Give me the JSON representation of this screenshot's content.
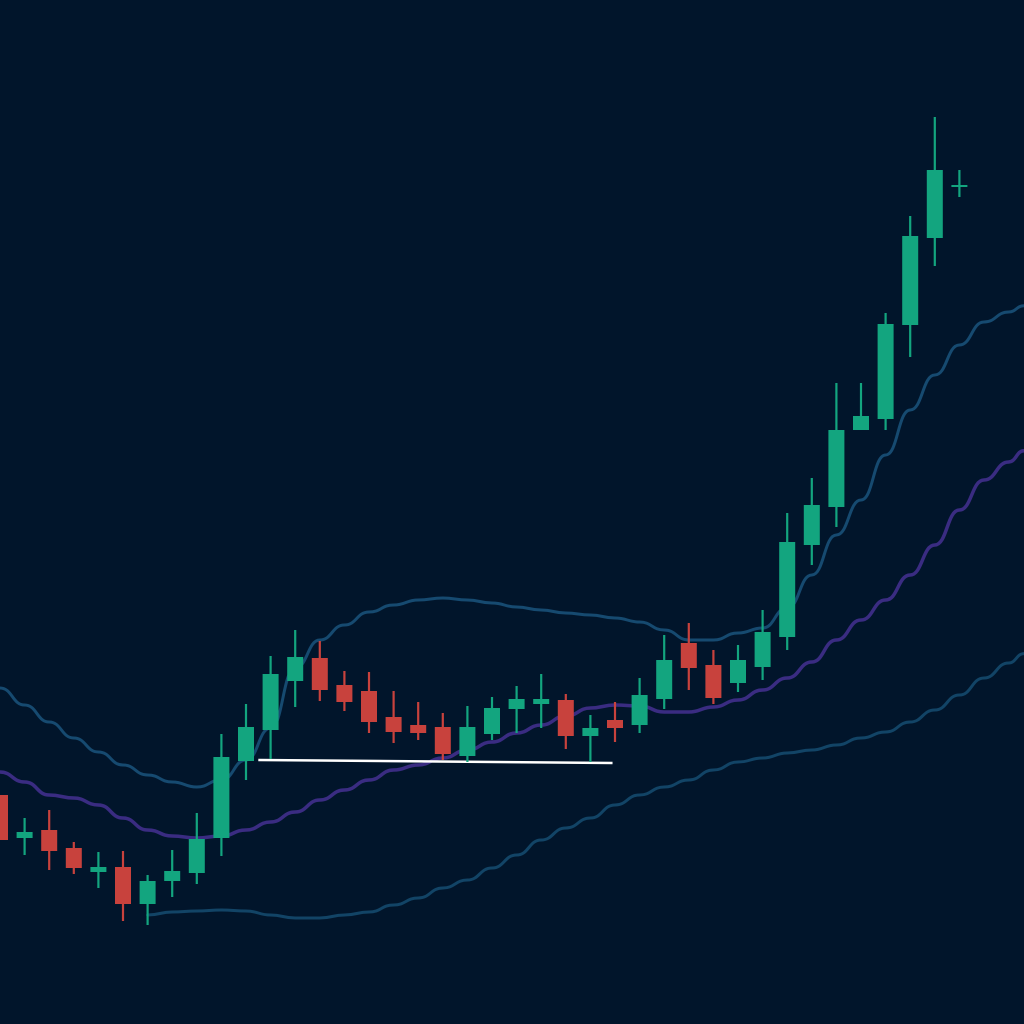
{
  "colors": {
    "background": "#01152b",
    "up": "#13a57f",
    "down": "#c8423d",
    "upper_band": "#164a70",
    "middle_band": "#3a2c82",
    "lower_band": "#124466",
    "support_line": "#ffffff"
  },
  "chart_data": {
    "type": "candlestick",
    "title": "",
    "xlabel": "",
    "ylabel": "",
    "axes_visible": false,
    "grid": false,
    "ylim": [
      0,
      100
    ],
    "candles": [
      {
        "i": 1,
        "o": 20.5,
        "h": 20.5,
        "l": 16.0,
        "c": 16.0
      },
      {
        "i": 2,
        "o": 16.2,
        "h": 18.2,
        "l": 14.5,
        "c": 16.8
      },
      {
        "i": 3,
        "o": 17.0,
        "h": 19.0,
        "l": 13.0,
        "c": 14.9
      },
      {
        "i": 4,
        "o": 15.2,
        "h": 15.8,
        "l": 12.6,
        "c": 13.2
      },
      {
        "i": 5,
        "o": 12.8,
        "h": 14.8,
        "l": 11.2,
        "c": 13.3
      },
      {
        "i": 6,
        "o": 13.3,
        "h": 14.9,
        "l": 7.9,
        "c": 9.6
      },
      {
        "i": 7,
        "o": 9.6,
        "h": 12.5,
        "l": 7.5,
        "c": 11.9
      },
      {
        "i": 8,
        "o": 11.9,
        "h": 15.0,
        "l": 10.3,
        "c": 12.9
      },
      {
        "i": 9,
        "o": 12.7,
        "h": 18.7,
        "l": 11.6,
        "c": 16.1
      },
      {
        "i": 10,
        "o": 16.2,
        "h": 26.6,
        "l": 14.4,
        "c": 24.3
      },
      {
        "i": 11,
        "o": 23.9,
        "h": 29.6,
        "l": 22.0,
        "c": 27.3
      },
      {
        "i": 12,
        "o": 27.0,
        "h": 34.4,
        "l": 24.1,
        "c": 32.6
      },
      {
        "i": 13,
        "o": 31.9,
        "h": 37.0,
        "l": 29.3,
        "c": 34.3
      },
      {
        "i": 14,
        "o": 34.2,
        "h": 35.9,
        "l": 29.9,
        "c": 31.0
      },
      {
        "i": 15,
        "o": 31.5,
        "h": 32.9,
        "l": 28.9,
        "c": 29.8
      },
      {
        "i": 16,
        "o": 30.9,
        "h": 32.8,
        "l": 26.7,
        "c": 27.8
      },
      {
        "i": 17,
        "o": 28.3,
        "h": 30.9,
        "l": 25.7,
        "c": 26.8
      },
      {
        "i": 18,
        "o": 27.5,
        "h": 29.8,
        "l": 26.0,
        "c": 26.7
      },
      {
        "i": 19,
        "o": 27.3,
        "h": 28.7,
        "l": 24.0,
        "c": 24.6
      },
      {
        "i": 20,
        "o": 24.4,
        "h": 29.4,
        "l": 23.8,
        "c": 27.3
      },
      {
        "i": 21,
        "o": 26.6,
        "h": 30.3,
        "l": 26.0,
        "c": 29.2
      },
      {
        "i": 22,
        "o": 29.1,
        "h": 31.4,
        "l": 26.7,
        "c": 30.1
      },
      {
        "i": 23,
        "o": 29.6,
        "h": 32.6,
        "l": 27.2,
        "c": 30.1
      },
      {
        "i": 24,
        "o": 30.0,
        "h": 30.6,
        "l": 25.1,
        "c": 26.4
      },
      {
        "i": 25,
        "o": 26.4,
        "h": 28.5,
        "l": 23.8,
        "c": 27.2
      },
      {
        "i": 26,
        "o": 28.0,
        "h": 29.8,
        "l": 25.8,
        "c": 27.2
      },
      {
        "i": 27,
        "o": 27.5,
        "h": 32.2,
        "l": 26.7,
        "c": 30.5
      },
      {
        "i": 28,
        "o": 30.1,
        "h": 36.5,
        "l": 29.1,
        "c": 34.0
      },
      {
        "i": 29,
        "o": 35.7,
        "h": 37.7,
        "l": 31.0,
        "c": 33.2
      },
      {
        "i": 30,
        "o": 33.5,
        "h": 35.0,
        "l": 29.6,
        "c": 30.2
      },
      {
        "i": 31,
        "o": 31.7,
        "h": 35.5,
        "l": 30.8,
        "c": 34.0
      },
      {
        "i": 32,
        "o": 33.3,
        "h": 39.0,
        "l": 32.0,
        "c": 36.8
      },
      {
        "i": 33,
        "o": 36.3,
        "h": 48.7,
        "l": 35.0,
        "c": 45.8
      },
      {
        "i": 34,
        "o": 45.5,
        "h": 52.2,
        "l": 43.5,
        "c": 49.5
      },
      {
        "i": 35,
        "o": 49.3,
        "h": 61.7,
        "l": 47.3,
        "c": 57.0
      },
      {
        "i": 36,
        "o": 57.0,
        "h": 61.7,
        "l": 57.0,
        "c": 58.4
      },
      {
        "i": 37,
        "o": 58.1,
        "h": 68.7,
        "l": 57.0,
        "c": 67.6
      },
      {
        "i": 38,
        "o": 67.5,
        "h": 78.4,
        "l": 64.3,
        "c": 76.4
      },
      {
        "i": 39,
        "o": 76.2,
        "h": 88.3,
        "l": 73.4,
        "c": 83.0
      },
      {
        "i": 40,
        "o": 81.4,
        "h": 83.0,
        "l": 80.3,
        "c": 81.5
      }
    ],
    "bands": {
      "upper": [
        31.2,
        29.5,
        27.8,
        26.2,
        24.8,
        23.5,
        22.5,
        21.8,
        21.3,
        22.0,
        24.0,
        27.2,
        33.2,
        36.0,
        37.5,
        38.8,
        39.5,
        40.0,
        40.2,
        40.0,
        39.7,
        39.3,
        39.0,
        38.7,
        38.5,
        38.2,
        37.8,
        37.0,
        36.0,
        36.0,
        36.7,
        37.2,
        39.2,
        42.5,
        46.5,
        50.0,
        54.5,
        59.0,
        62.5,
        65.5,
        67.8,
        68.8
      ],
      "middle": [
        22.8,
        21.8,
        20.5,
        20.2,
        19.5,
        18.2,
        17.0,
        16.4,
        16.2,
        16.4,
        17.0,
        17.8,
        18.8,
        20.0,
        21.0,
        22.0,
        23.0,
        23.5,
        24.2,
        25.0,
        25.8,
        26.7,
        27.5,
        28.4,
        29.2,
        29.5,
        29.4,
        28.8,
        28.8,
        29.3,
        30.0,
        31.0,
        32.2,
        33.8,
        36.0,
        38.0,
        40.0,
        42.5,
        45.5,
        49.0,
        52.0,
        53.8
      ],
      "lower": [
        null,
        null,
        null,
        null,
        null,
        null,
        8.5,
        8.8,
        8.9,
        9.0,
        8.9,
        8.5,
        8.2,
        8.2,
        8.5,
        8.8,
        9.5,
        10.2,
        11.2,
        12.0,
        13.2,
        14.5,
        16.0,
        17.2,
        18.2,
        19.5,
        20.5,
        21.3,
        22.0,
        23.0,
        23.8,
        24.2,
        24.7,
        25.0,
        25.5,
        26.2,
        26.8,
        27.8,
        29.0,
        30.5,
        32.2,
        33.7
      ]
    },
    "annotations": [
      {
        "type": "support-line",
        "from": {
          "i": 11.5,
          "price": 24.0
        },
        "to": {
          "i": 25.9,
          "price": 23.7
        }
      }
    ]
  }
}
